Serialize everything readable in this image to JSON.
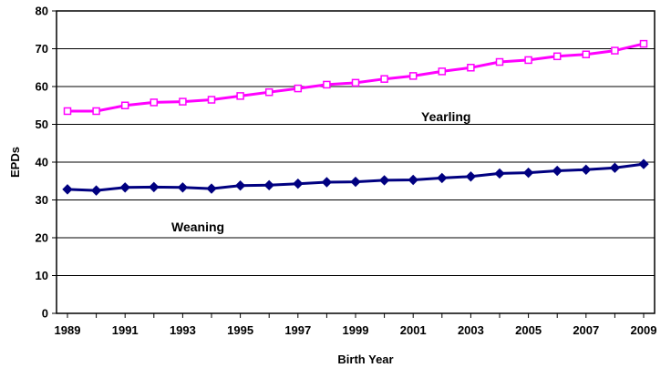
{
  "chart_data": {
    "type": "line",
    "xlabel": "Birth Year",
    "ylabel": "EPDs",
    "ylim": [
      0,
      80
    ],
    "y_ticks": [
      0,
      10,
      20,
      30,
      40,
      50,
      60,
      70,
      80
    ],
    "x": [
      1989,
      1990,
      1991,
      1992,
      1993,
      1994,
      1995,
      1996,
      1997,
      1998,
      1999,
      2000,
      2001,
      2002,
      2003,
      2004,
      2005,
      2006,
      2007,
      2008,
      2009
    ],
    "x_tick_labels": [
      "1989",
      "1991",
      "1993",
      "1995",
      "1997",
      "1999",
      "2001",
      "2003",
      "2005",
      "2007",
      "2009"
    ],
    "grid": "horizontal",
    "series": [
      {
        "name": "Yearling",
        "color": "#ff00ff",
        "marker": "square",
        "values": [
          53.5,
          53.5,
          55,
          55.8,
          56,
          56.5,
          57.5,
          58.5,
          59.5,
          60.5,
          61,
          62,
          62.8,
          64,
          65,
          66.5,
          67,
          68,
          68.5,
          69.5,
          71.3
        ]
      },
      {
        "name": "Weaning",
        "color": "#000080",
        "marker": "diamond",
        "values": [
          32.8,
          32.5,
          33.3,
          33.4,
          33.3,
          33,
          33.8,
          33.9,
          34.3,
          34.7,
          34.8,
          35.2,
          35.3,
          35.8,
          36.2,
          37,
          37.2,
          37.7,
          38,
          38.5,
          39.5
        ]
      }
    ]
  }
}
